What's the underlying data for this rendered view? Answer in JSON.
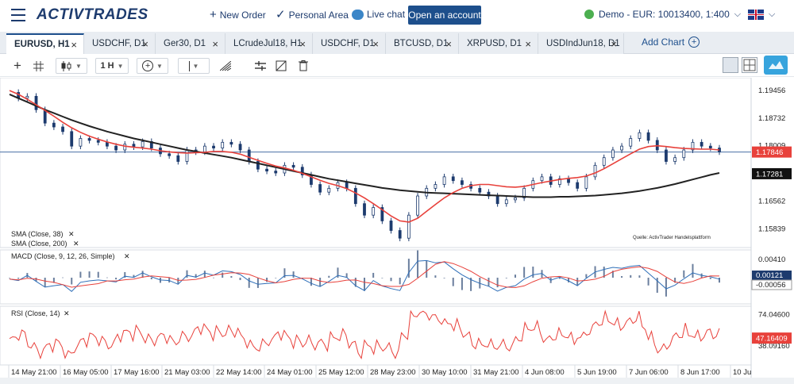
{
  "header": {
    "logo_text": "ACTIVTRADES",
    "new_order": "New Order",
    "personal_area": "Personal Area",
    "live_chat": "Live chat",
    "open_account": "Open an account",
    "account": "Demo - EUR: 10013400, 1:400",
    "status_color": "#4caf50",
    "accent_color": "#1d4f8c"
  },
  "tabs": [
    {
      "label": "EURUSD, H1",
      "active": true
    },
    {
      "label": "USDCHF, D1",
      "active": false
    },
    {
      "label": "Ger30, D1",
      "active": false
    },
    {
      "label": "LCrudeJul18, H1",
      "active": false
    },
    {
      "label": "USDCHF, D1",
      "active": false
    },
    {
      "label": "BTCUSD, D1",
      "active": false
    },
    {
      "label": "XRPUSD, D1",
      "active": false
    },
    {
      "label": "USDIndJun18, D1",
      "active": false
    }
  ],
  "add_chart": "Add Chart",
  "toolbar": {
    "timeframe": "1 H"
  },
  "chart_data": [
    {
      "type": "line",
      "panel": "price",
      "symbol": "EURUSD",
      "timeframe": "H1",
      "source_note": "Quelle: ActivTrader Handelsplattform",
      "indicators": [
        {
          "label": "SMA (Close, 38)",
          "color": "#e8413b"
        },
        {
          "label": "SMA (Close, 200)",
          "color": "#222222"
        }
      ],
      "y_ticks": [
        "1.19456",
        "1.18732",
        "1.18009",
        "1.17281",
        "1.16562",
        "1.15839"
      ],
      "y_tick_values": [
        1.19456,
        1.18732,
        1.18009,
        1.17281,
        1.16562,
        1.15839
      ],
      "ylim": [
        1.1548,
        1.197
      ],
      "current_price": "1.17846",
      "current_price_value": 1.17846,
      "sma200_last": "1.17281",
      "sma200_last_value": 1.17281,
      "series_price": [
        1.194,
        1.1925,
        1.193,
        1.1895,
        1.186,
        1.185,
        1.1838,
        1.18,
        1.182,
        1.1815,
        1.181,
        1.18,
        1.179,
        1.1805,
        1.1798,
        1.1812,
        1.1795,
        1.178,
        1.1775,
        1.176,
        1.179,
        1.1785,
        1.18,
        1.1795,
        1.181,
        1.1805,
        1.179,
        1.176,
        1.174,
        1.1735,
        1.173,
        1.175,
        1.1745,
        1.1725,
        1.17,
        1.168,
        1.169,
        1.1705,
        1.169,
        1.165,
        1.162,
        1.164,
        1.1605,
        1.158,
        1.156,
        1.162,
        1.167,
        1.169,
        1.17,
        1.172,
        1.171,
        1.17,
        1.169,
        1.168,
        1.167,
        1.165,
        1.166,
        1.1665,
        1.169,
        1.171,
        1.172,
        1.17,
        1.1715,
        1.1705,
        1.169,
        1.172,
        1.175,
        1.177,
        1.179,
        1.18,
        1.182,
        1.1835,
        1.1815,
        1.179,
        1.176,
        1.177,
        1.179,
        1.181,
        1.18,
        1.1795,
        1.1785
      ],
      "series_sma38": [
        1.1945,
        1.1935,
        1.1922,
        1.1908,
        1.1893,
        1.1878,
        1.1862,
        1.1848,
        1.1836,
        1.1826,
        1.1818,
        1.1811,
        1.1805,
        1.18,
        1.1797,
        1.1795,
        1.1792,
        1.1788,
        1.1785,
        1.1783,
        1.1782,
        1.1783,
        1.1784,
        1.1786,
        1.1786,
        1.1784,
        1.1779,
        1.1771,
        1.1763,
        1.1755,
        1.1748,
        1.1743,
        1.1737,
        1.1729,
        1.172,
        1.1711,
        1.1703,
        1.1697,
        1.1689,
        1.1678,
        1.1665,
        1.165,
        1.1634,
        1.1618,
        1.1605,
        1.1602,
        1.1612,
        1.163,
        1.1648,
        1.1665,
        1.1679,
        1.169,
        1.1697,
        1.17,
        1.17,
        1.1697,
        1.1694,
        1.1693,
        1.1695,
        1.17,
        1.1705,
        1.1709,
        1.1713,
        1.1716,
        1.1718,
        1.1722,
        1.173,
        1.1741,
        1.1754,
        1.1767,
        1.178,
        1.1792,
        1.1799,
        1.1801,
        1.1799,
        1.1796,
        1.1794,
        1.1793,
        1.1792,
        1.1792,
        1.179
      ],
      "series_sma200": [
        1.1935,
        1.1925,
        1.1915,
        1.1905,
        1.1895,
        1.1886,
        1.1877,
        1.1868,
        1.186,
        1.1852,
        1.1845,
        1.1838,
        1.1832,
        1.1826,
        1.182,
        1.1815,
        1.181,
        1.1805,
        1.18,
        1.1795,
        1.179,
        1.1786,
        1.1782,
        1.1778,
        1.1774,
        1.177,
        1.1765,
        1.176,
        1.1755,
        1.175,
        1.1745,
        1.174,
        1.1735,
        1.173,
        1.1725,
        1.172,
        1.1715,
        1.1711,
        1.1707,
        1.1703,
        1.1699,
        1.1695,
        1.1691,
        1.1688,
        1.1685,
        1.1683,
        1.1681,
        1.1679,
        1.1678,
        1.1677,
        1.1676,
        1.1675,
        1.1674,
        1.1673,
        1.1672,
        1.1671,
        1.167,
        1.1669,
        1.1668,
        1.1667,
        1.1667,
        1.1667,
        1.1668,
        1.1668,
        1.1669,
        1.167,
        1.1671,
        1.1673,
        1.1675,
        1.1677,
        1.168,
        1.1683,
        1.1687,
        1.1691,
        1.1696,
        1.1701,
        1.1707,
        1.1713,
        1.1719,
        1.1725,
        1.173
      ]
    },
    {
      "type": "line",
      "panel": "macd",
      "label": "MACD (Close, 9, 12, 26, Simple)",
      "y_ticks": [
        "0.00410"
      ],
      "ylim": [
        -0.006,
        0.006
      ],
      "last_values": [
        "0.00121",
        "-0.00056"
      ]
    },
    {
      "type": "line",
      "panel": "rsi",
      "label": "RSI (Close, 14)",
      "y_ticks": [
        "74.04600",
        "38.09160"
      ],
      "ylim": [
        20,
        80
      ],
      "last_value": "47.16409"
    }
  ],
  "x_ticks": [
    "14 May 21:00",
    "16 May 05:00",
    "17 May 16:00",
    "21 May 03:00",
    "22 May 14:00",
    "24 May 01:00",
    "25 May 12:00",
    "28 May 23:00",
    "30 May 10:00",
    "31 May 21:00",
    "4 Jun 08:00",
    "5 Jun 19:00",
    "7 Jun 06:00",
    "8 Jun 17:00",
    "10 Ju"
  ]
}
